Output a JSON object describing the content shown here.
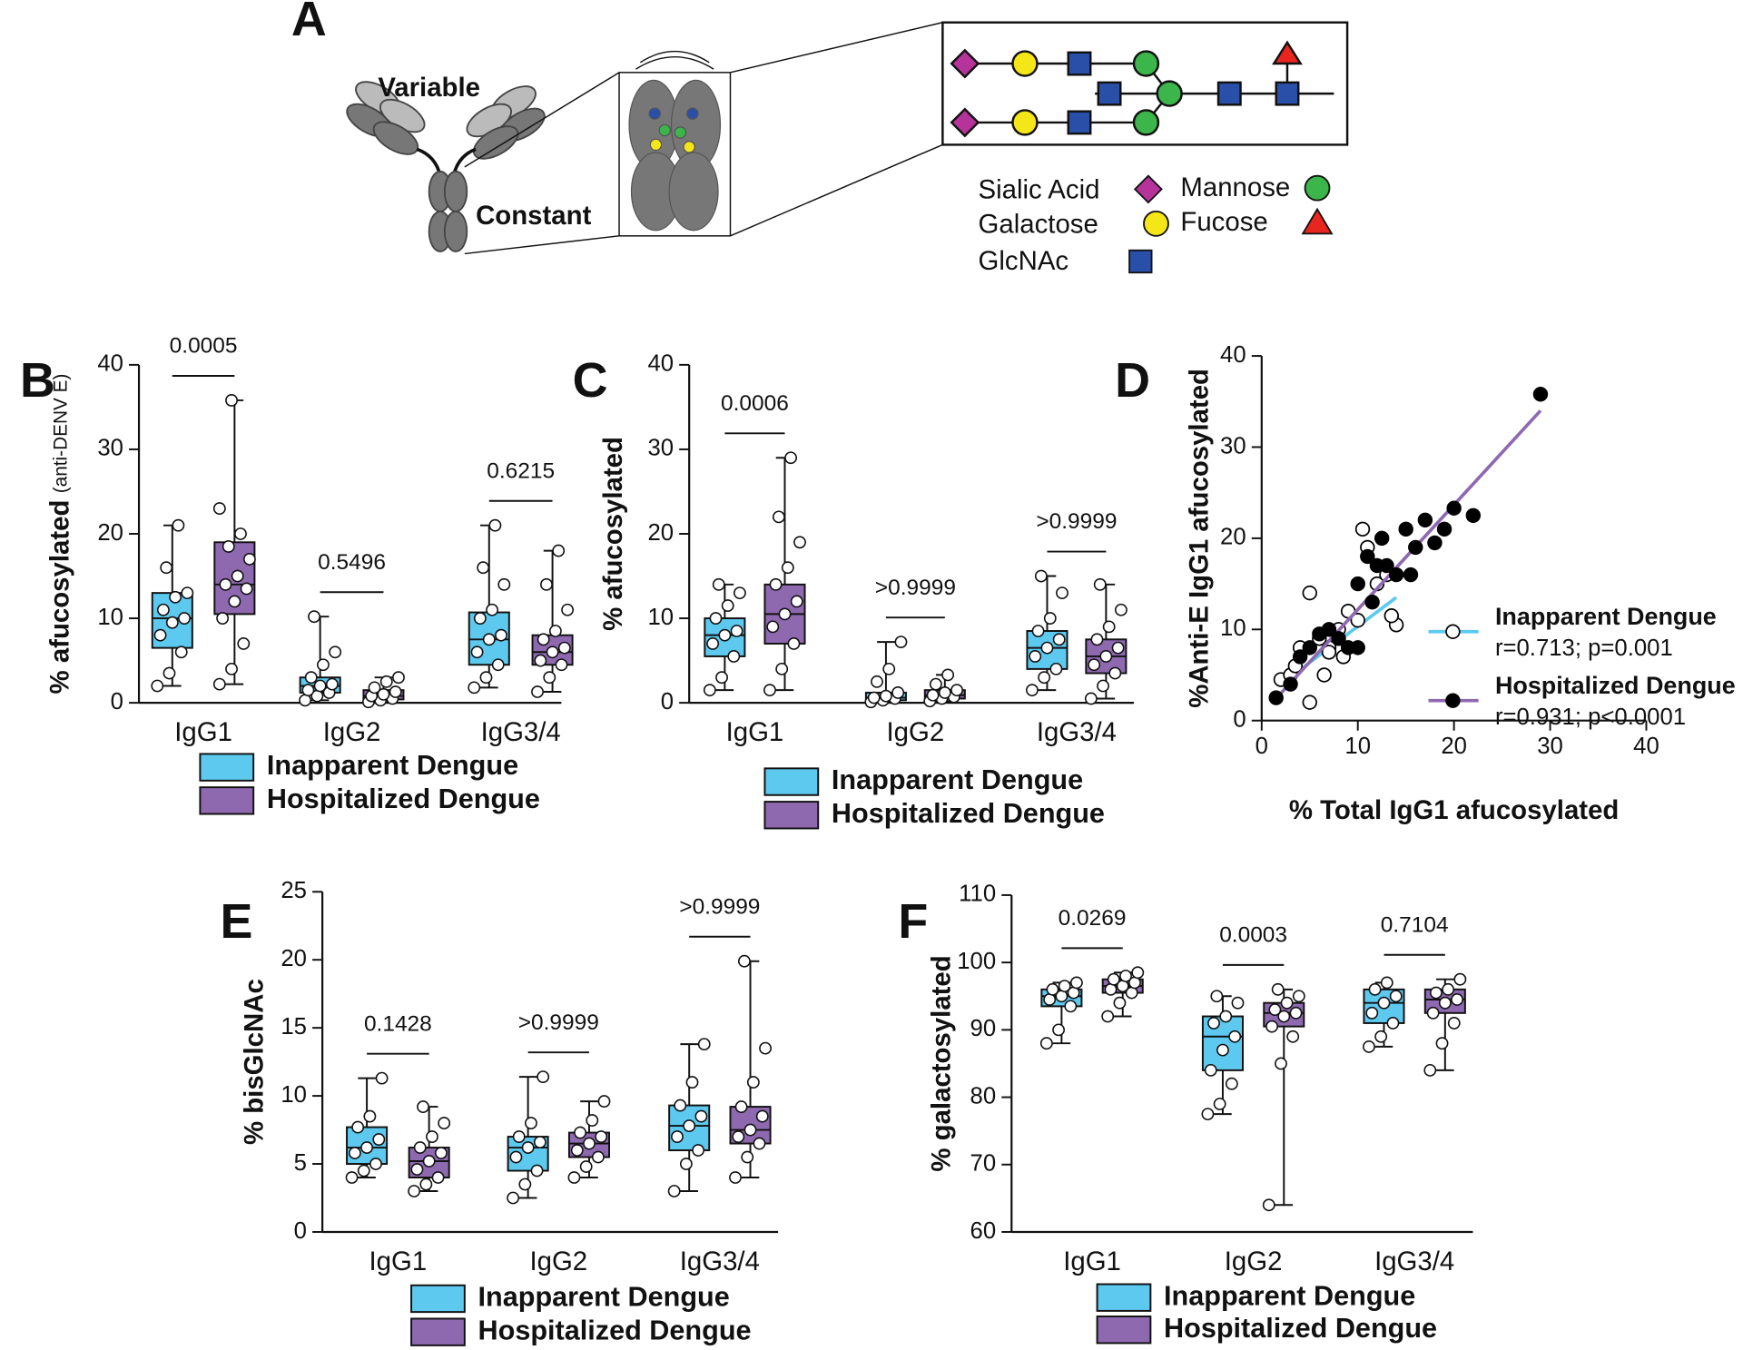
{
  "diagram": {
    "panel": "A",
    "variable": "Variable",
    "constant": "Constant",
    "legend": [
      "Sialic Acid",
      "Galactose",
      "GlcNAc",
      "Mannose",
      "Fucose"
    ]
  },
  "chart_data": [
    {
      "type": "box",
      "panel": "B",
      "ylabel": "% afucosylated",
      "ylabel_note": "(anti-DENV E)",
      "ylim": [
        0,
        40
      ],
      "yticks": [
        0,
        10,
        20,
        30,
        40
      ],
      "categories": [
        "IgG1",
        "IgG2",
        "IgG3/4"
      ],
      "p_values": [
        "0.0005",
        "0.5496",
        "0.6215"
      ],
      "series": [
        {
          "name": "Inapparent Dengue",
          "color": "#5dc9ef",
          "boxes": [
            {
              "min": 2,
              "q1": 6.5,
              "median": 10,
              "q3": 13,
              "max": 21,
              "points": [
                2,
                3.5,
                6,
                8,
                9.5,
                10,
                11,
                12.5,
                13,
                16,
                21
              ]
            },
            {
              "min": 0.3,
              "q1": 1.2,
              "median": 2,
              "q3": 3,
              "max": 10.2,
              "points": [
                0.3,
                0.8,
                1.2,
                1.5,
                2,
                2.2,
                3,
                4.5,
                6,
                10.2
              ]
            },
            {
              "min": 1.8,
              "q1": 4.5,
              "median": 7.5,
              "q3": 10.7,
              "max": 21,
              "points": [
                1.8,
                3,
                4.5,
                6,
                7.5,
                8,
                10,
                11,
                14,
                16,
                21
              ]
            }
          ]
        },
        {
          "name": "Hospitalized Dengue",
          "color": "#8e69b0",
          "boxes": [
            {
              "min": 2.2,
              "q1": 10.5,
              "median": 14,
              "q3": 19,
              "max": 35.8,
              "points": [
                2.2,
                4,
                7,
                10,
                12,
                13.5,
                14,
                15,
                17,
                18.5,
                20,
                23,
                35.8
              ]
            },
            {
              "min": 0.1,
              "q1": 0.4,
              "median": 0.8,
              "q3": 1.5,
              "max": 3,
              "points": [
                0.1,
                0.3,
                0.5,
                0.8,
                1,
                1.3,
                1.8,
                2.5,
                3
              ]
            },
            {
              "min": 1.3,
              "q1": 4.5,
              "median": 6,
              "q3": 8,
              "max": 18,
              "points": [
                1.3,
                3,
                4.5,
                5,
                6,
                6.5,
                7.5,
                8.5,
                11,
                14,
                18
              ]
            }
          ]
        }
      ]
    },
    {
      "type": "box",
      "panel": "C",
      "ylabel": "% afucosylated",
      "ylim": [
        0,
        40
      ],
      "yticks": [
        0,
        10,
        20,
        30,
        40
      ],
      "categories": [
        "IgG1",
        "IgG2",
        "IgG3/4"
      ],
      "p_values": [
        "0.0006",
        ">0.9999",
        ">0.9999"
      ],
      "series": [
        {
          "name": "Inapparent Dengue",
          "color": "#5dc9ef",
          "boxes": [
            {
              "min": 1.5,
              "q1": 5.5,
              "median": 8,
              "q3": 10,
              "max": 14,
              "points": [
                1.5,
                3,
                5.5,
                7,
                8,
                8.5,
                10,
                11.5,
                13,
                14
              ]
            },
            {
              "min": 0.1,
              "q1": 0.3,
              "median": 0.6,
              "q3": 1.2,
              "max": 7.2,
              "points": [
                0.1,
                0.3,
                0.5,
                0.6,
                0.8,
                1.2,
                2.5,
                4,
                7.2
              ]
            },
            {
              "min": 1.5,
              "q1": 4,
              "median": 6.5,
              "q3": 8.5,
              "max": 15,
              "points": [
                1.5,
                3,
                4,
                5.5,
                6.5,
                7.5,
                8.5,
                10,
                13,
                15
              ]
            }
          ]
        },
        {
          "name": "Hospitalized Dengue",
          "color": "#8e69b0",
          "boxes": [
            {
              "min": 1.5,
              "q1": 7,
              "median": 10.5,
              "q3": 14,
              "max": 29,
              "points": [
                1.5,
                4,
                7,
                9,
                10.5,
                12,
                14,
                16,
                19,
                22,
                29
              ]
            },
            {
              "min": 0.2,
              "q1": 0.5,
              "median": 0.9,
              "q3": 1.5,
              "max": 3.3,
              "points": [
                0.2,
                0.5,
                0.7,
                0.9,
                1.2,
                1.5,
                2.2,
                3.3
              ]
            },
            {
              "min": 0.5,
              "q1": 3.5,
              "median": 5.5,
              "q3": 7.5,
              "max": 14,
              "points": [
                0.5,
                2,
                3.5,
                4.5,
                5.5,
                6.5,
                7.5,
                9,
                11,
                14
              ]
            }
          ]
        }
      ]
    },
    {
      "type": "scatter",
      "panel": "D",
      "xlabel": "% Total IgG1 afucosylated",
      "ylabel": "%Anti-E IgG1 afucosylated",
      "xlim": [
        0,
        40
      ],
      "ylim": [
        0,
        40
      ],
      "xticks": [
        0,
        10,
        20,
        30,
        40
      ],
      "yticks": [
        0,
        10,
        20,
        30,
        40
      ],
      "series": [
        {
          "name": "Inapparent Dengue",
          "stats": "r=0.713; p=0.001",
          "marker": "open",
          "color": "#000000",
          "line_color": "#5dc9ef",
          "x": [
            2,
            3,
            3.5,
            5,
            5,
            6,
            7,
            8,
            8.5,
            9,
            10,
            10.5,
            11,
            12,
            13,
            14,
            13.5,
            4,
            6.5,
            7
          ],
          "y": [
            4.5,
            5,
            6,
            2,
            14,
            9,
            8,
            10,
            7,
            12,
            11,
            21,
            19,
            15,
            16,
            10.5,
            11.5,
            8,
            5,
            7.5
          ],
          "fit": {
            "x": [
              2,
              14
            ],
            "y": [
              4,
              13.5
            ]
          }
        },
        {
          "name": "Hospitalized Dengue",
          "stats": "r=0.931; p<0.0001",
          "marker": "filled",
          "color": "#000000",
          "line_color": "#8e69b0",
          "x": [
            1.5,
            3,
            4,
            5,
            6,
            7,
            8,
            9,
            10,
            11,
            11.5,
            12,
            13,
            14,
            15,
            16,
            17,
            18,
            19,
            20,
            22,
            29,
            12.5,
            10,
            15.5
          ],
          "y": [
            2.5,
            4,
            7,
            8,
            9.5,
            10,
            9,
            8,
            15,
            18,
            13,
            17,
            17,
            16,
            21,
            19,
            22,
            19.5,
            21,
            23.3,
            22.5,
            35.8,
            20,
            8,
            16
          ],
          "fit": {
            "x": [
              2,
              29
            ],
            "y": [
              3,
              34
            ]
          }
        }
      ]
    },
    {
      "type": "box",
      "panel": "E",
      "ylabel": "% bisGlcNAc",
      "ylim": [
        0,
        25
      ],
      "yticks": [
        0,
        5,
        10,
        15,
        20,
        25
      ],
      "categories": [
        "IgG1",
        "IgG2",
        "IgG3/4"
      ],
      "p_values": [
        "0.1428",
        ">0.9999",
        ">0.9999"
      ],
      "series": [
        {
          "name": "Inapparent Dengue",
          "color": "#5dc9ef",
          "boxes": [
            {
              "min": 4,
              "q1": 5,
              "median": 6.2,
              "q3": 7.7,
              "max": 11.3,
              "points": [
                4,
                4.5,
                5,
                5.8,
                6.2,
                6.8,
                7.7,
                8.5,
                11.3
              ]
            },
            {
              "min": 2.5,
              "q1": 4.5,
              "median": 6.2,
              "q3": 7,
              "max": 11.4,
              "points": [
                2.5,
                3.5,
                4.5,
                5.5,
                6.2,
                6.6,
                7,
                8,
                11.4
              ]
            },
            {
              "min": 3,
              "q1": 6,
              "median": 7.8,
              "q3": 9.3,
              "max": 13.8,
              "points": [
                3,
                5,
                6,
                7,
                7.8,
                8.5,
                9.3,
                11,
                13.8
              ]
            }
          ]
        },
        {
          "name": "Hospitalized Dengue",
          "color": "#8e69b0",
          "boxes": [
            {
              "min": 3,
              "q1": 4,
              "median": 5.2,
              "q3": 6.2,
              "max": 9.2,
              "points": [
                3,
                3.5,
                4,
                4.6,
                5.2,
                5.8,
                6.2,
                7,
                8,
                9.2
              ]
            },
            {
              "min": 4,
              "q1": 5.5,
              "median": 6.5,
              "q3": 7.3,
              "max": 9.6,
              "points": [
                4,
                4.8,
                5.5,
                6,
                6.5,
                7,
                7.3,
                8.2,
                9.6
              ]
            },
            {
              "min": 4,
              "q1": 6.5,
              "median": 7.5,
              "q3": 9.2,
              "max": 19.9,
              "points": [
                4,
                5.5,
                6.5,
                7,
                7.5,
                8.5,
                9.2,
                11,
                13.5,
                19.9
              ]
            }
          ]
        }
      ]
    },
    {
      "type": "box",
      "panel": "F",
      "ylabel": "% galactosylated",
      "ylim": [
        60,
        110
      ],
      "yticks": [
        60,
        70,
        80,
        90,
        100,
        110
      ],
      "categories": [
        "IgG1",
        "IgG2",
        "IgG3/4"
      ],
      "p_values": [
        "0.0269",
        "0.0003",
        "0.7104"
      ],
      "series": [
        {
          "name": "Inapparent Dengue",
          "color": "#5dc9ef",
          "boxes": [
            {
              "min": 88,
              "q1": 93.5,
              "median": 95,
              "q3": 96,
              "max": 97,
              "points": [
                88,
                90,
                93.5,
                94.5,
                95,
                95.5,
                96,
                96.5,
                97
              ]
            },
            {
              "min": 77.5,
              "q1": 84,
              "median": 89,
              "q3": 92,
              "max": 95,
              "points": [
                77.5,
                79,
                82,
                84,
                87,
                89,
                91,
                92,
                94,
                95
              ]
            },
            {
              "min": 87.5,
              "q1": 91,
              "median": 94,
              "q3": 96,
              "max": 97,
              "points": [
                87.5,
                89,
                91,
                92.5,
                94,
                95,
                96,
                97
              ]
            }
          ]
        },
        {
          "name": "Hospitalized Dengue",
          "color": "#8e69b0",
          "boxes": [
            {
              "min": 92,
              "q1": 95.5,
              "median": 96.5,
              "q3": 97.5,
              "max": 98.5,
              "points": [
                92,
                94,
                95.5,
                96,
                96.5,
                97,
                97.5,
                98,
                98.5
              ]
            },
            {
              "min": 64,
              "q1": 90.5,
              "median": 92.5,
              "q3": 94,
              "max": 96,
              "points": [
                64,
                85,
                89,
                90.5,
                92,
                92.5,
                93,
                94,
                95,
                96
              ]
            },
            {
              "min": 84,
              "q1": 92.5,
              "median": 94.5,
              "q3": 96,
              "max": 97.5,
              "points": [
                84,
                88,
                91,
                92.5,
                94,
                94.5,
                95.5,
                96,
                97.5
              ]
            }
          ]
        }
      ]
    }
  ]
}
